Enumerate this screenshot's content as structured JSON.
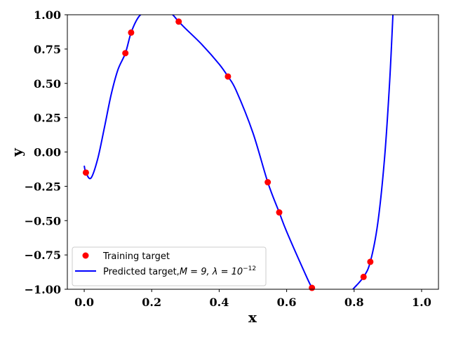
{
  "chart_data": {
    "type": "line",
    "xlabel": "x",
    "ylabel": "y",
    "xlim": [
      -0.05,
      1.05
    ],
    "ylim": [
      -1.0,
      1.0
    ],
    "grid": false,
    "legend_position": "lower-left",
    "x_ticks": [
      {
        "value": 0.0,
        "label": "0.0"
      },
      {
        "value": 0.2,
        "label": "0.2"
      },
      {
        "value": 0.4,
        "label": "0.4"
      },
      {
        "value": 0.6,
        "label": "0.6"
      },
      {
        "value": 0.8,
        "label": "0.8"
      },
      {
        "value": 1.0,
        "label": "1.0"
      }
    ],
    "y_ticks": [
      {
        "value": 1.0,
        "label": "1.00"
      },
      {
        "value": 0.75,
        "label": "0.75"
      },
      {
        "value": 0.5,
        "label": "0.50"
      },
      {
        "value": 0.25,
        "label": "0.25"
      },
      {
        "value": 0.0,
        "label": "0.00"
      },
      {
        "value": -0.25,
        "label": "−0.25"
      },
      {
        "value": -0.5,
        "label": "−0.50"
      },
      {
        "value": -0.75,
        "label": "−0.75"
      },
      {
        "value": -1.0,
        "label": "−1.00"
      }
    ],
    "series": [
      {
        "name": "Training target",
        "kind": "scatter",
        "color": "#ff0000",
        "x": [
          0.005,
          0.122,
          0.139,
          0.28,
          0.426,
          0.544,
          0.578,
          0.675,
          0.828,
          0.848
        ],
        "y": [
          -0.15,
          0.72,
          0.87,
          0.95,
          0.55,
          -0.22,
          -0.44,
          -0.99,
          -0.91,
          -0.8
        ]
      },
      {
        "name_prefix": "Predicted target,",
        "name_math": "M = 9, λ = 10",
        "name_exponent": "−12",
        "kind": "line",
        "color": "#0000ff",
        "x": [
          0.0,
          0.005,
          0.02,
          0.04,
          0.06,
          0.08,
          0.1,
          0.122,
          0.139,
          0.16,
          0.18,
          0.2,
          0.25,
          0.28,
          0.3,
          0.35,
          0.4,
          0.426,
          0.45,
          0.5,
          0.544,
          0.578,
          0.6,
          0.65,
          0.675,
          0.7,
          0.75,
          0.78,
          0.8,
          0.828,
          0.848,
          0.87,
          0.89,
          0.905,
          0.915
        ],
        "y": [
          -0.1,
          -0.15,
          -0.19,
          -0.05,
          0.18,
          0.42,
          0.6,
          0.72,
          0.87,
          0.98,
          1.02,
          1.02,
          1.02,
          0.95,
          0.9,
          0.78,
          0.64,
          0.55,
          0.45,
          0.14,
          -0.22,
          -0.44,
          -0.58,
          -0.86,
          -0.99,
          -1.08,
          -1.08,
          -1.04,
          -0.99,
          -0.91,
          -0.8,
          -0.52,
          -0.05,
          0.5,
          1.0
        ]
      }
    ]
  }
}
